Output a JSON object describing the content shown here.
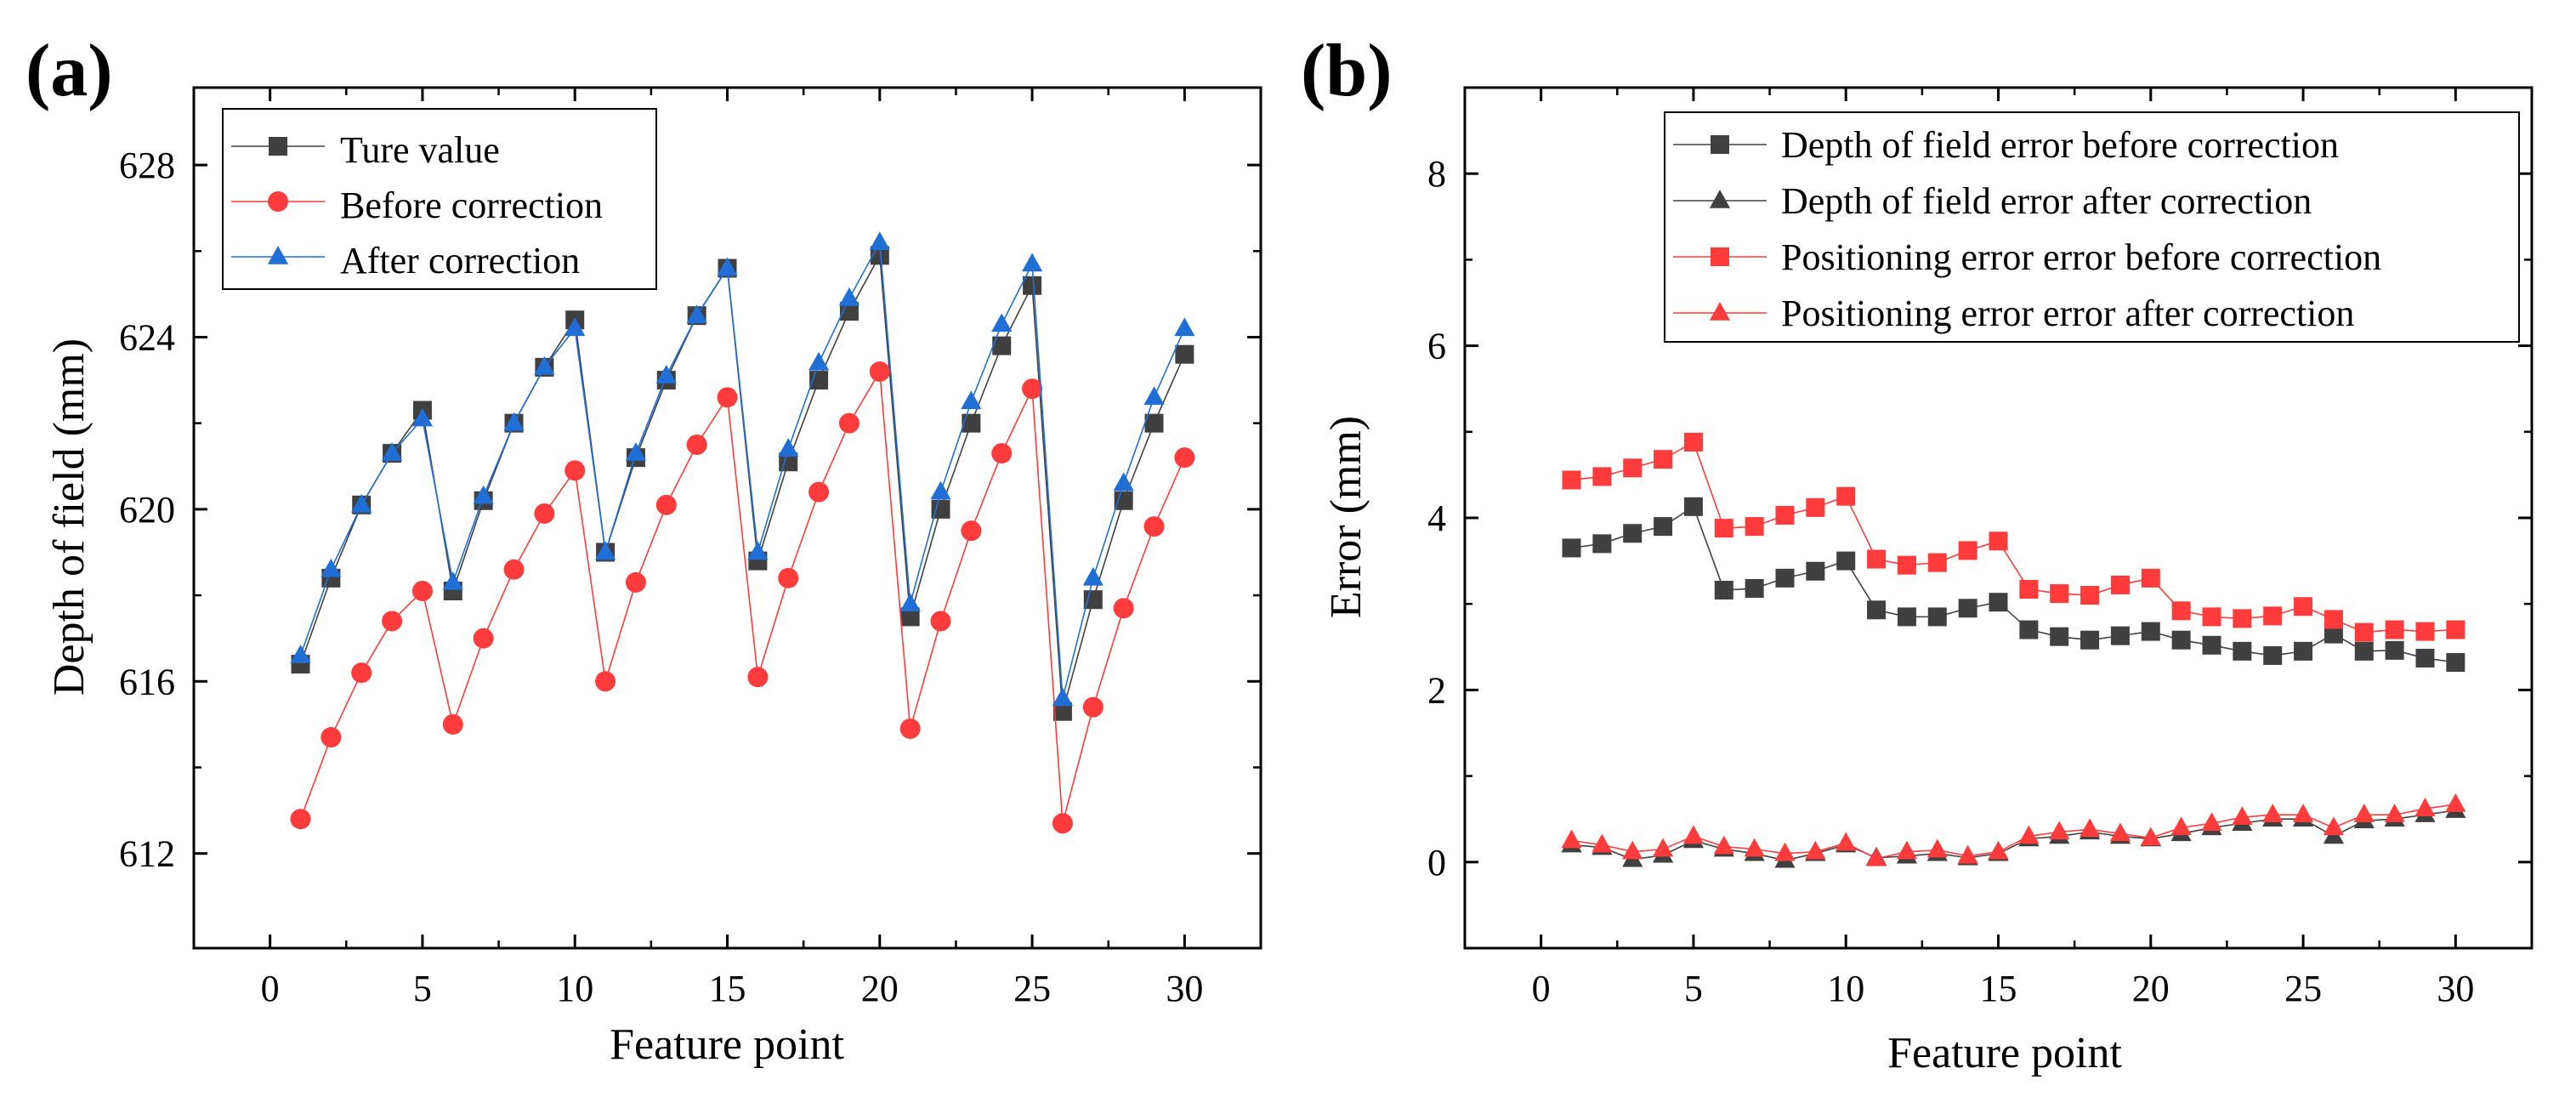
{
  "chart_data": [
    {
      "type": "line",
      "panel_label": "(a)",
      "xlabel": "Feature point",
      "ylabel": "Depth of field (mm)",
      "xlim": [
        -2.5,
        32.5
      ],
      "ylim": [
        609.8,
        629.8
      ],
      "xticks": [
        0,
        5,
        10,
        15,
        20,
        25,
        30
      ],
      "yticks": [
        612,
        616,
        620,
        624,
        628
      ],
      "x": [
        1,
        2,
        3,
        4,
        5,
        6,
        7,
        8,
        9,
        10,
        11,
        12,
        13,
        14,
        15,
        16,
        17,
        18,
        19,
        20,
        21,
        22,
        23,
        24,
        25,
        26,
        27,
        28,
        29,
        30
      ],
      "legend_position": "top-left",
      "series": [
        {
          "name": "Ture value",
          "marker": "square",
          "color": "#404040",
          "values": [
            616.4,
            618.4,
            620.1,
            621.3,
            622.3,
            618.1,
            620.2,
            622.0,
            623.3,
            624.4,
            619.0,
            621.2,
            623.0,
            624.5,
            625.6,
            618.8,
            621.1,
            623.0,
            624.6,
            625.9,
            617.5,
            620.0,
            622.0,
            623.8,
            625.2,
            615.3,
            617.9,
            620.2,
            622.0,
            623.6
          ]
        },
        {
          "name": "Before correction",
          "marker": "circle",
          "color": "#ff3b3b",
          "values": [
            612.8,
            614.7,
            616.2,
            617.4,
            618.1,
            615.0,
            617.0,
            618.6,
            619.9,
            620.9,
            616.0,
            618.3,
            620.1,
            621.5,
            622.6,
            616.1,
            618.4,
            620.4,
            622.0,
            623.2,
            614.9,
            617.4,
            619.5,
            621.3,
            622.8,
            612.7,
            615.4,
            617.7,
            619.6,
            621.2
          ]
        },
        {
          "name": "After correction",
          "marker": "triangle",
          "color": "#1f6fd6",
          "values": [
            616.6,
            618.6,
            620.1,
            621.3,
            622.1,
            618.3,
            620.3,
            622.0,
            623.3,
            624.2,
            619.0,
            621.3,
            623.1,
            624.5,
            625.6,
            619.0,
            621.4,
            623.4,
            624.9,
            626.2,
            617.8,
            620.4,
            622.5,
            624.3,
            625.7,
            615.6,
            618.4,
            620.6,
            622.6,
            624.2
          ]
        }
      ]
    },
    {
      "type": "line",
      "panel_label": "(b)",
      "xlabel": "Feature point",
      "ylabel": "Error (mm)",
      "xlim": [
        -2.5,
        32.5
      ],
      "ylim": [
        -1,
        9
      ],
      "xticks": [
        0,
        5,
        10,
        15,
        20,
        25,
        30
      ],
      "yticks": [
        0,
        2,
        4,
        6,
        8
      ],
      "x": [
        1,
        2,
        3,
        4,
        5,
        6,
        7,
        8,
        9,
        10,
        11,
        12,
        13,
        14,
        15,
        16,
        17,
        18,
        19,
        20,
        21,
        22,
        23,
        24,
        25,
        26,
        27,
        28,
        29,
        30
      ],
      "legend_position": "top-right",
      "series": [
        {
          "name": "Depth of field error before correction",
          "marker": "square",
          "color": "#404040",
          "values": [
            3.65,
            3.7,
            3.82,
            3.9,
            4.13,
            3.16,
            3.18,
            3.3,
            3.38,
            3.5,
            2.93,
            2.85,
            2.85,
            2.95,
            3.02,
            2.7,
            2.62,
            2.58,
            2.63,
            2.68,
            2.58,
            2.52,
            2.45,
            2.4,
            2.45,
            2.65,
            2.45,
            2.46,
            2.37,
            2.32
          ]
        },
        {
          "name": "Depth of field error after correction",
          "marker": "triangle",
          "color": "#404040",
          "values": [
            0.2,
            0.17,
            0.03,
            0.08,
            0.25,
            0.15,
            0.1,
            0.02,
            0.1,
            0.2,
            0.05,
            0.07,
            0.1,
            0.05,
            0.1,
            0.27,
            0.3,
            0.35,
            0.3,
            0.27,
            0.33,
            0.4,
            0.45,
            0.5,
            0.5,
            0.3,
            0.48,
            0.5,
            0.55,
            0.6
          ]
        },
        {
          "name": "Positioning error error before correction",
          "marker": "square",
          "color": "#ff3b3b",
          "values": [
            4.44,
            4.48,
            4.58,
            4.68,
            4.88,
            3.88,
            3.9,
            4.03,
            4.12,
            4.25,
            3.52,
            3.45,
            3.48,
            3.62,
            3.73,
            3.17,
            3.12,
            3.1,
            3.22,
            3.3,
            2.92,
            2.85,
            2.83,
            2.86,
            2.97,
            2.82,
            2.67,
            2.7,
            2.68,
            2.7
          ]
        },
        {
          "name": "Positioning error error after correction",
          "marker": "triangle",
          "color": "#ff3b3b",
          "values": [
            0.25,
            0.2,
            0.12,
            0.15,
            0.3,
            0.18,
            0.15,
            0.1,
            0.12,
            0.22,
            0.04,
            0.12,
            0.14,
            0.07,
            0.12,
            0.3,
            0.35,
            0.38,
            0.33,
            0.28,
            0.4,
            0.45,
            0.52,
            0.55,
            0.55,
            0.4,
            0.55,
            0.55,
            0.62,
            0.67
          ]
        }
      ]
    }
  ]
}
